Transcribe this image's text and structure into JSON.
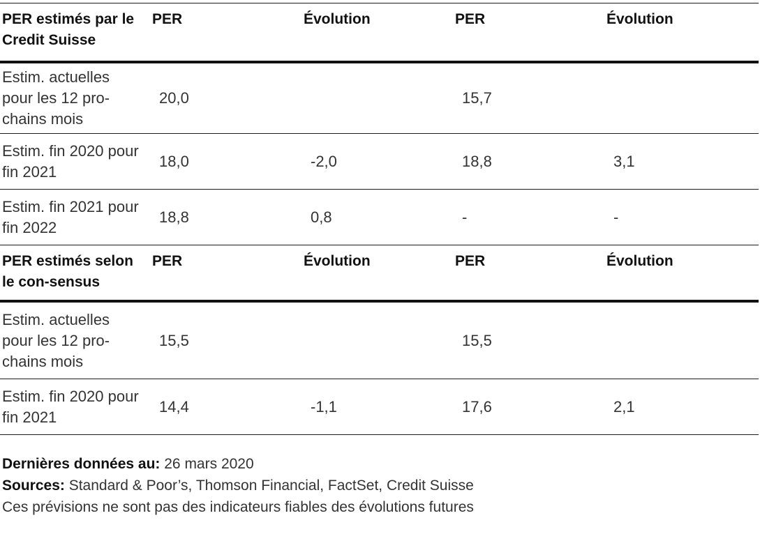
{
  "section1": {
    "header": [
      "PER estimés par le Credit Suisse",
      "PER",
      "Évolution",
      "PER",
      "Évolution"
    ],
    "rows": [
      [
        "Estim. actuelles pour les 12 pro-chains mois",
        "20,0",
        "",
        "15,7",
        ""
      ],
      [
        "Estim. fin 2020 pour fin 2021",
        "18,0",
        "-2,0",
        "18,8",
        "3,1"
      ],
      [
        "Estim. fin 2021 pour fin 2022",
        "18,8",
        "0,8",
        "-",
        "-"
      ]
    ]
  },
  "section2": {
    "header": [
      "PER estimés selon le con-sensus",
      "PER",
      "Évolution",
      "PER",
      "Évolution"
    ],
    "rows": [
      [
        "Estim. actuelles pour les 12 pro-chains mois",
        "15,5",
        "",
        "15,5",
        ""
      ],
      [
        "Estim. fin 2020 pour fin 2021",
        "14,4",
        "-1,1",
        "17,6",
        "2,1"
      ]
    ]
  },
  "footer": {
    "last_data_label": "Dernières données au:",
    "last_data_value": "26 mars 2020",
    "sources_label": "Sources:",
    "sources_value": "Standard & Poor’s, Thomson Financial, FactSet, Credit Suisse",
    "disclaimer": "Ces prévisions ne sont pas des indicateurs fiables des évolutions futures"
  }
}
